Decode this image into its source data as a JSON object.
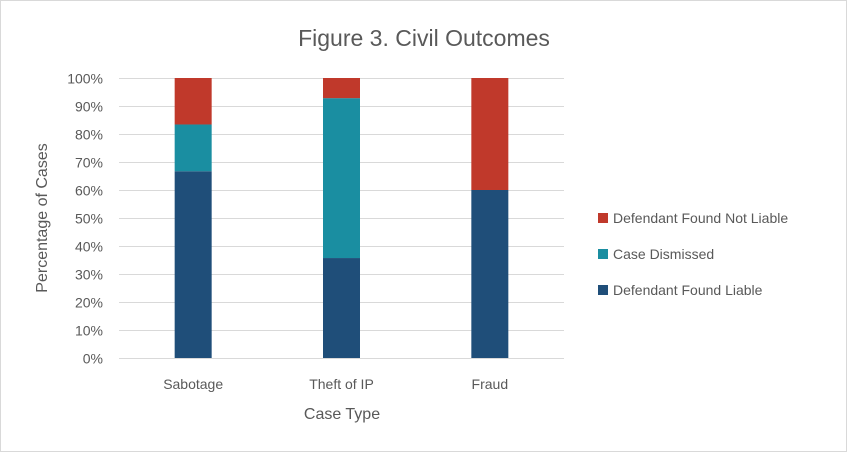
{
  "chart_data": {
    "type": "bar",
    "stacked": true,
    "title": "Figure 3. Civil Outcomes",
    "xlabel": "Case Type",
    "ylabel": "Percentage of Cases",
    "categories": [
      "Sabotage",
      "Theft of IP",
      "Fraud"
    ],
    "ylim": [
      0,
      100
    ],
    "yticks": [
      "0%",
      "10%",
      "20%",
      "30%",
      "40%",
      "50%",
      "60%",
      "70%",
      "80%",
      "90%",
      "100%"
    ],
    "grid": true,
    "legend_position": "right",
    "series": [
      {
        "name": "Defendant Found Liable",
        "values": [
          66.7,
          35.7,
          60.0
        ],
        "color": "#1f4e79"
      },
      {
        "name": "Case Dismissed",
        "values": [
          16.7,
          57.1,
          0.0
        ],
        "color": "#1a8ea1"
      },
      {
        "name": "Defendant Found Not Liable",
        "values": [
          16.6,
          7.2,
          40.0
        ],
        "color": "#c0392b"
      }
    ]
  }
}
